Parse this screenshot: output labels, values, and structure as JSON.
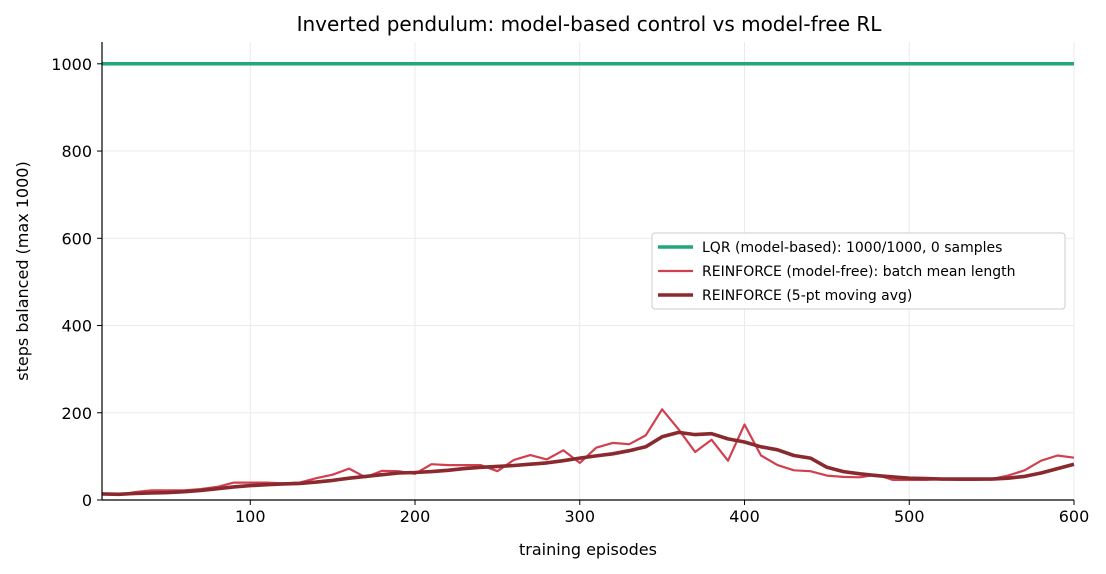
{
  "chart_data": {
    "type": "line",
    "title": "Inverted pendulum: model-based control vs model-free RL",
    "xlabel": "training episodes",
    "ylabel": "steps balanced (max 1000)",
    "xlim": [
      10,
      600
    ],
    "ylim": [
      0,
      1050
    ],
    "xticks": [
      100,
      200,
      300,
      400,
      500,
      600
    ],
    "yticks": [
      0,
      200,
      400,
      600,
      800,
      1000
    ],
    "grid": true,
    "legend_position": "right",
    "series": [
      {
        "name": "LQR (model-based): 1000/1000, 0 samples",
        "color": "#22a77a",
        "x": [
          10,
          600
        ],
        "y": [
          1000,
          1000
        ]
      },
      {
        "name": "REINFORCE (model-free): batch mean length",
        "color": "#d0404f",
        "x": [
          10,
          20,
          30,
          40,
          50,
          60,
          70,
          80,
          90,
          100,
          110,
          120,
          130,
          140,
          150,
          160,
          170,
          180,
          190,
          200,
          210,
          220,
          230,
          240,
          250,
          260,
          270,
          280,
          290,
          300,
          310,
          320,
          330,
          340,
          350,
          360,
          370,
          380,
          390,
          400,
          410,
          420,
          430,
          440,
          450,
          460,
          470,
          480,
          490,
          500,
          510,
          520,
          530,
          540,
          550,
          560,
          570,
          580,
          590,
          600
        ],
        "y": [
          15,
          12,
          18,
          22,
          22,
          22,
          25,
          30,
          40,
          40,
          40,
          38,
          40,
          50,
          58,
          72,
          52,
          67,
          66,
          60,
          82,
          80,
          80,
          80,
          66,
          92,
          103,
          93,
          114,
          85,
          120,
          131,
          128,
          148,
          208,
          162,
          110,
          138,
          90,
          173,
          102,
          80,
          68,
          66,
          56,
          53,
          52,
          58,
          46,
          46,
          46,
          48,
          46,
          46,
          48,
          56,
          68,
          90,
          102,
          97
        ]
      },
      {
        "name": "REINFORCE (5-pt moving avg)",
        "color": "#8b2a2e",
        "x": [
          10,
          20,
          30,
          40,
          50,
          60,
          70,
          80,
          90,
          100,
          110,
          120,
          130,
          140,
          150,
          160,
          170,
          180,
          190,
          200,
          210,
          220,
          230,
          240,
          250,
          260,
          270,
          280,
          290,
          300,
          310,
          320,
          330,
          340,
          350,
          360,
          370,
          380,
          390,
          400,
          410,
          420,
          430,
          440,
          450,
          460,
          470,
          480,
          490,
          500,
          510,
          520,
          530,
          540,
          550,
          560,
          570,
          580,
          590,
          600
        ],
        "y": [
          14,
          13,
          15,
          16,
          17,
          19,
          22,
          26,
          30,
          33,
          35,
          37,
          38,
          41,
          45,
          50,
          54,
          58,
          62,
          63,
          65,
          68,
          72,
          75,
          77,
          79,
          82,
          85,
          90,
          96,
          101,
          106,
          113,
          122,
          145,
          155,
          150,
          152,
          140,
          133,
          122,
          115,
          102,
          96,
          75,
          65,
          60,
          56,
          53,
          50,
          49,
          48,
          48,
          48,
          48,
          50,
          54,
          62,
          72,
          82
        ]
      }
    ]
  }
}
